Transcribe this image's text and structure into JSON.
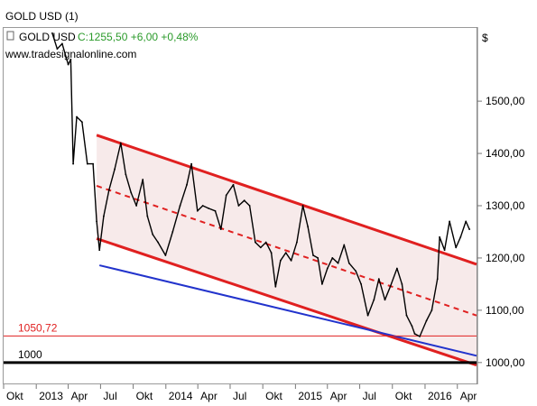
{
  "window": {
    "title": "GOLD USD (1)"
  },
  "header": {
    "symbol": "GOLD USD",
    "quote": "C:1255,50 +6,00 +0,48%",
    "website": "www.tradesignalonline.com",
    "currency": "$"
  },
  "colors": {
    "price": "#000000",
    "channel": "#e02020",
    "channel_fill": "#f6e6e6",
    "support": "#2233cc",
    "level_1050": "#e02020",
    "level_1000": "#000000",
    "quote_green": "#2a9a2a"
  },
  "chart_data": {
    "type": "line",
    "title": "GOLD USD",
    "xlabel": "",
    "ylabel": "$",
    "ylim": [
      960,
      1640
    ],
    "xlim": [
      "2012-10-01",
      "2016-05-25"
    ],
    "x_ticks": [
      {
        "label": "Okt",
        "date": "2012-10-01"
      },
      {
        "label": "2013",
        "date": "2013-01-01"
      },
      {
        "label": "Apr",
        "date": "2013-04-01"
      },
      {
        "label": "Jul",
        "date": "2013-07-01"
      },
      {
        "label": "Okt",
        "date": "2013-10-01"
      },
      {
        "label": "2014",
        "date": "2014-01-01"
      },
      {
        "label": "Apr",
        "date": "2014-04-01"
      },
      {
        "label": "Jul",
        "date": "2014-07-01"
      },
      {
        "label": "Okt",
        "date": "2014-10-01"
      },
      {
        "label": "2015",
        "date": "2015-01-01"
      },
      {
        "label": "Apr",
        "date": "2015-04-01"
      },
      {
        "label": "Jul",
        "date": "2015-07-01"
      },
      {
        "label": "Okt",
        "date": "2015-10-01"
      },
      {
        "label": "2016",
        "date": "2016-01-01"
      },
      {
        "label": "Apr",
        "date": "2016-04-01"
      }
    ],
    "y_ticks": [
      {
        "label": "1000,00",
        "value": 1000
      },
      {
        "label": "1100,00",
        "value": 1100
      },
      {
        "label": "1200,00",
        "value": 1200
      },
      {
        "label": "1300,00",
        "value": 1300
      },
      {
        "label": "1400,00",
        "value": 1400
      },
      {
        "label": "1500,00",
        "value": 1500
      }
    ],
    "grid": false,
    "series": [
      {
        "name": "GOLD USD",
        "x": [
          "2013-02-15",
          "2013-03-01",
          "2013-03-15",
          "2013-04-01",
          "2013-04-08",
          "2013-04-15",
          "2013-04-25",
          "2013-05-10",
          "2013-05-25",
          "2013-06-10",
          "2013-06-20",
          "2013-06-28",
          "2013-07-10",
          "2013-07-25",
          "2013-08-10",
          "2013-08-27",
          "2013-09-10",
          "2013-09-25",
          "2013-10-10",
          "2013-10-28",
          "2013-11-10",
          "2013-11-25",
          "2013-12-10",
          "2013-12-31",
          "2014-01-20",
          "2014-02-10",
          "2014-03-01",
          "2014-03-14",
          "2014-03-31",
          "2014-04-15",
          "2014-05-01",
          "2014-05-20",
          "2014-06-05",
          "2014-06-20",
          "2014-07-10",
          "2014-07-25",
          "2014-08-10",
          "2014-08-25",
          "2014-09-10",
          "2014-09-25",
          "2014-10-10",
          "2014-10-25",
          "2014-11-06",
          "2014-11-20",
          "2014-12-05",
          "2014-12-20",
          "2015-01-05",
          "2015-01-22",
          "2015-02-05",
          "2015-02-20",
          "2015-03-05",
          "2015-03-17",
          "2015-04-01",
          "2015-04-15",
          "2015-05-01",
          "2015-05-18",
          "2015-06-01",
          "2015-06-20",
          "2015-07-05",
          "2015-07-24",
          "2015-08-10",
          "2015-08-24",
          "2015-09-10",
          "2015-09-25",
          "2015-10-14",
          "2015-10-28",
          "2015-11-10",
          "2015-11-25",
          "2015-12-03",
          "2015-12-17",
          "2016-01-05",
          "2016-01-20",
          "2016-02-05",
          "2016-02-11",
          "2016-02-25",
          "2016-03-10",
          "2016-03-28",
          "2016-04-10",
          "2016-04-25",
          "2016-05-05"
        ],
        "y": [
          1630,
          1600,
          1610,
          1570,
          1580,
          1380,
          1470,
          1460,
          1380,
          1380,
          1270,
          1215,
          1280,
          1330,
          1370,
          1420,
          1360,
          1325,
          1300,
          1350,
          1280,
          1245,
          1230,
          1205,
          1250,
          1300,
          1340,
          1380,
          1290,
          1300,
          1295,
          1290,
          1255,
          1320,
          1340,
          1300,
          1310,
          1300,
          1230,
          1220,
          1230,
          1210,
          1145,
          1195,
          1210,
          1195,
          1230,
          1300,
          1260,
          1205,
          1200,
          1150,
          1180,
          1200,
          1190,
          1225,
          1190,
          1175,
          1150,
          1090,
          1120,
          1160,
          1120,
          1145,
          1180,
          1150,
          1090,
          1070,
          1055,
          1050,
          1080,
          1100,
          1160,
          1240,
          1215,
          1270,
          1220,
          1240,
          1270,
          1255
        ]
      }
    ],
    "trend_lines": [
      {
        "role": "channel-upper",
        "style": "solid",
        "from": {
          "x": "2013-06-20",
          "y": 1435
        },
        "to": {
          "x": "2016-05-25",
          "y": 1188
        }
      },
      {
        "role": "channel-middle",
        "style": "dashed",
        "from": {
          "x": "2013-06-20",
          "y": 1338
        },
        "to": {
          "x": "2016-05-25",
          "y": 1090
        }
      },
      {
        "role": "channel-lower",
        "style": "solid",
        "from": {
          "x": "2013-06-20",
          "y": 1237
        },
        "to": {
          "x": "2016-05-25",
          "y": 995
        }
      },
      {
        "role": "support",
        "style": "solid",
        "from": {
          "x": "2013-06-28",
          "y": 1186
        },
        "to": {
          "x": "2016-05-25",
          "y": 1013
        }
      }
    ],
    "levels": [
      {
        "value": 1050.72,
        "label": "1050,72"
      },
      {
        "value": 1000,
        "label": "1000"
      }
    ]
  }
}
